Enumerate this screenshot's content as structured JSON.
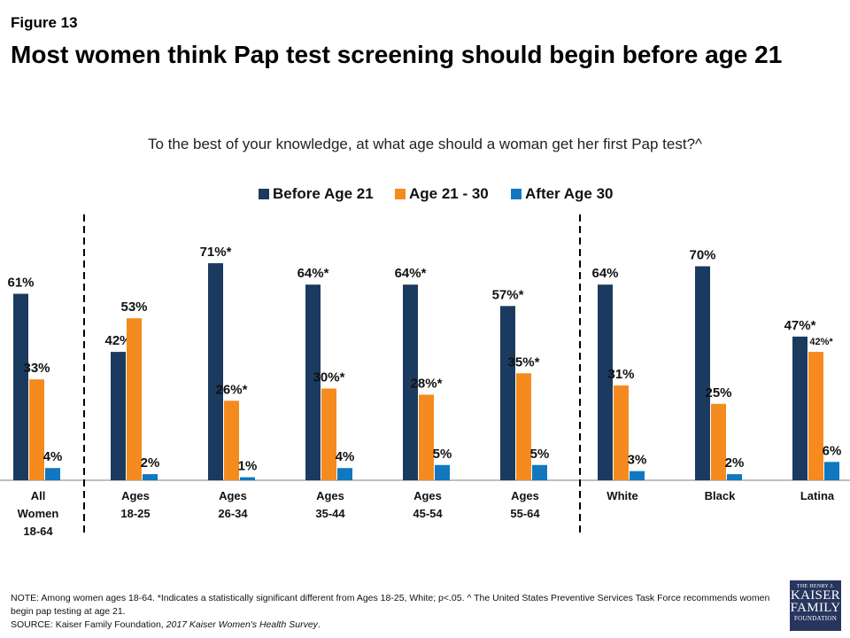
{
  "figure_label": "Figure 13",
  "title": "Most women think Pap test screening should begin before age 21",
  "colors": {
    "before21": "#1b3a5f",
    "age21_30": "#f58a1f",
    "after30": "#1077c0"
  },
  "note": "NOTE:  Among women ages 18-64. *Indicates a statistically significant different from Ages 18-25, White; p<.05. ^ The United States Preventive Services Task Force recommends women begin pap testing at age 21.",
  "source_prefix": "SOURCE:  Kaiser Family Foundation, ",
  "source_title": "2017 Kaiser Women's Health Survey",
  "source_suffix": ".",
  "logo": {
    "line1": "THE HENRY J.",
    "line2": "KAISER",
    "line3": "FAMILY",
    "line4": "FOUNDATION"
  },
  "chart_data": {
    "type": "bar",
    "title": "To the best of your knowledge, at what age should a woman get her first Pap test?^",
    "legend_position": "top-center",
    "grid": false,
    "ylim": [
      0,
      75
    ],
    "categories": [
      [
        "All",
        "Women",
        "18-64"
      ],
      [
        "Ages",
        "18-25"
      ],
      [
        "Ages",
        "26-34"
      ],
      [
        "Ages",
        "35-44"
      ],
      [
        "Ages",
        "45-54"
      ],
      [
        "Ages",
        "55-64"
      ],
      [
        "White"
      ],
      [
        "Black"
      ],
      [
        "Latina"
      ]
    ],
    "series": [
      {
        "name": "Before Age 21",
        "values": [
          61,
          42,
          71,
          64,
          64,
          57,
          64,
          70,
          47
        ],
        "labels": [
          "61%",
          "42%",
          "71%*",
          "64%*",
          "64%*",
          "57%*",
          "64%",
          "70%",
          "47%*"
        ]
      },
      {
        "name": "Age 21 - 30",
        "values": [
          33,
          53,
          26,
          30,
          28,
          35,
          31,
          25,
          42
        ],
        "labels": [
          "33%",
          "53%",
          "26%*",
          "30%*",
          "28%*",
          "35%*",
          "31%",
          "25%",
          "42%*"
        ]
      },
      {
        "name": "After Age 30",
        "values": [
          4,
          2,
          1,
          4,
          5,
          5,
          3,
          2,
          6
        ],
        "labels": [
          "4%",
          "2%",
          "1%",
          "4%",
          "5%",
          "5%",
          "3%",
          "2%",
          "6%"
        ]
      }
    ]
  }
}
